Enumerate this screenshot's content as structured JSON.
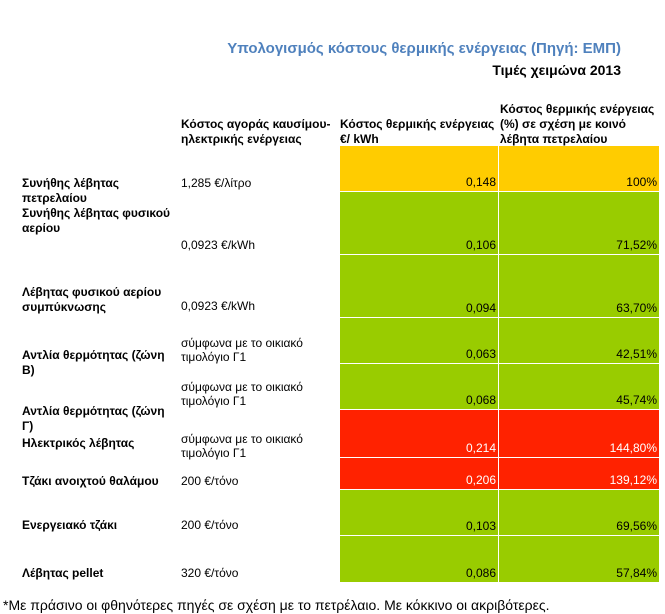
{
  "title": "Υπολογισμός κόστους θερμικής ενέργειας (Πηγή: ΕΜΠ)",
  "subtitle": "Τιμές χειμώνα 2013",
  "colors": {
    "yellow": "#ffcc00",
    "green": "#99cc00",
    "red": "#ff2200",
    "title_blue": "#4f81bd"
  },
  "headers": {
    "price": "Κόστος αγοράς καυσίμου-ηλεκτρικής ενέργειας",
    "cost": "Κόστος θερμικής ενέργειας €/ kWh",
    "pct": "Κόστος θερμικής ενέργειας (%) σε σχέση με κοινό λέβητα πετρελαίου"
  },
  "rows": [
    {
      "label": "Συνήθης λέβητας πετρελαίου",
      "price": "1,285 €/λίτρο",
      "cost": "0,148",
      "pct": "100%",
      "color": "#ffcc00",
      "val_color": "#000000"
    },
    {
      "label": "Συνήθης λέβητας φυσικού αερίου",
      "price": "0,0923 €/kWh",
      "cost": "0,106",
      "pct": "71,52%",
      "color": "#99cc00",
      "val_color": "#000000"
    },
    {
      "label": "Λέβητας φυσικού αερίου συμπύκνωσης",
      "price": "0,0923 €/kWh",
      "cost": "0,094",
      "pct": "63,70%",
      "color": "#99cc00",
      "val_color": "#000000"
    },
    {
      "label": "Αντλία θερμότητας (ζώνη Β)",
      "price": "σύμφωνα με το οικιακό τιμολόγιο Γ1",
      "cost": "0,063",
      "pct": "42,51%",
      "color": "#99cc00",
      "val_color": "#000000"
    },
    {
      "label": "Αντλία θερμότητας (ζώνη Γ)",
      "price": "σύμφωνα με το οικιακό τιμολόγιο Γ1",
      "cost": "0,068",
      "pct": "45,74%",
      "color": "#99cc00",
      "val_color": "#000000"
    },
    {
      "label": "Ηλεκτρικός λέβητας",
      "price": "σύμφωνα με το οικιακό τιμολόγιο Γ1",
      "cost": "0,214",
      "pct": "144,80%",
      "color": "#ff2200",
      "val_color": "#ffffff"
    },
    {
      "label": "Τζάκι ανοιχτού θαλάμου",
      "price": "200 €/τόνο",
      "cost": "0,206",
      "pct": "139,12%",
      "color": "#ff2200",
      "val_color": "#ffffff"
    },
    {
      "label": "Ενεργειακό τζάκι",
      "price": "200 €/τόνο",
      "cost": "0,103",
      "pct": "69,56%",
      "color": "#99cc00",
      "val_color": "#000000"
    },
    {
      "label": "Λέβητας pellet",
      "price": "320 €/τόνο",
      "cost": "0,086",
      "pct": "57,84%",
      "color": "#99cc00",
      "val_color": "#000000"
    }
  ],
  "footnote": "*Με πράσινο οι φθηνότερες πηγές σε σχέση με το πετρέλαιο. Με κόκκινο οι ακριβότερες."
}
